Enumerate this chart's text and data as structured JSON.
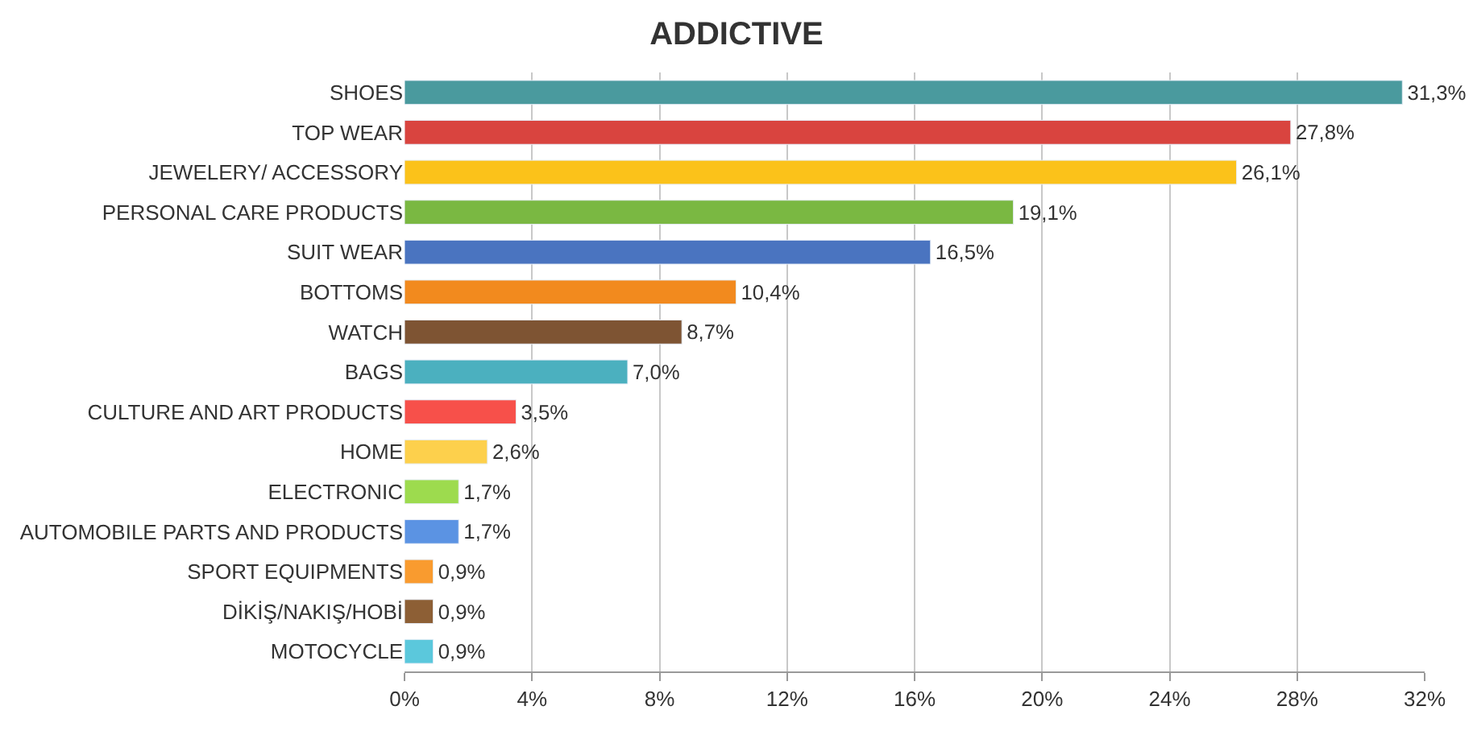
{
  "chart_data": {
    "type": "bar",
    "orientation": "horizontal",
    "title": "ADDICTIVE",
    "categories": [
      "SHOES",
      "TOP WEAR",
      "JEWELERY/ ACCESSORY",
      "PERSONAL CARE PRODUCTS",
      "SUIT WEAR",
      "BOTTOMS",
      "WATCH",
      "BAGS",
      "CULTURE AND ART PRODUCTS",
      "HOME",
      "ELECTRONIC",
      "AUTOMOBILE PARTS AND PRODUCTS",
      "SPORT EQUIPMENTS",
      "DİKİŞ/NAKIŞ/HOBİ",
      "MOTOCYCLE"
    ],
    "values": [
      31.3,
      27.8,
      26.1,
      19.1,
      16.5,
      10.4,
      8.7,
      7.0,
      3.5,
      2.6,
      1.7,
      1.7,
      0.9,
      0.9,
      0.9
    ],
    "value_labels": [
      "31,3%",
      "27,8%",
      "26,1%",
      "19,1%",
      "16,5%",
      "10,4%",
      "8,7%",
      "7,0%",
      "3,5%",
      "2,6%",
      "1,7%",
      "1,7%",
      "0,9%",
      "0,9%",
      "0,9%"
    ],
    "colors": [
      "#4a9a9e",
      "#d9443f",
      "#fbc21a",
      "#7ab842",
      "#4a74c0",
      "#f28a1e",
      "#7e5433",
      "#4bb0bf",
      "#f7504a",
      "#fdd04c",
      "#9ddb4e",
      "#5b93e3",
      "#f99b2f",
      "#8d5f35",
      "#5bc8dc"
    ],
    "xlim": [
      0,
      32
    ],
    "xticks": [
      {
        "value": 0,
        "label": "0%"
      },
      {
        "value": 4,
        "label": "4%"
      },
      {
        "value": 8,
        "label": "8%"
      },
      {
        "value": 12,
        "label": "12%"
      },
      {
        "value": 16,
        "label": "16%"
      },
      {
        "value": 20,
        "label": "20%"
      },
      {
        "value": 24,
        "label": "24%"
      },
      {
        "value": 28,
        "label": "28%"
      },
      {
        "value": 32,
        "label": "32%"
      }
    ],
    "grid": "x",
    "legend": false
  }
}
